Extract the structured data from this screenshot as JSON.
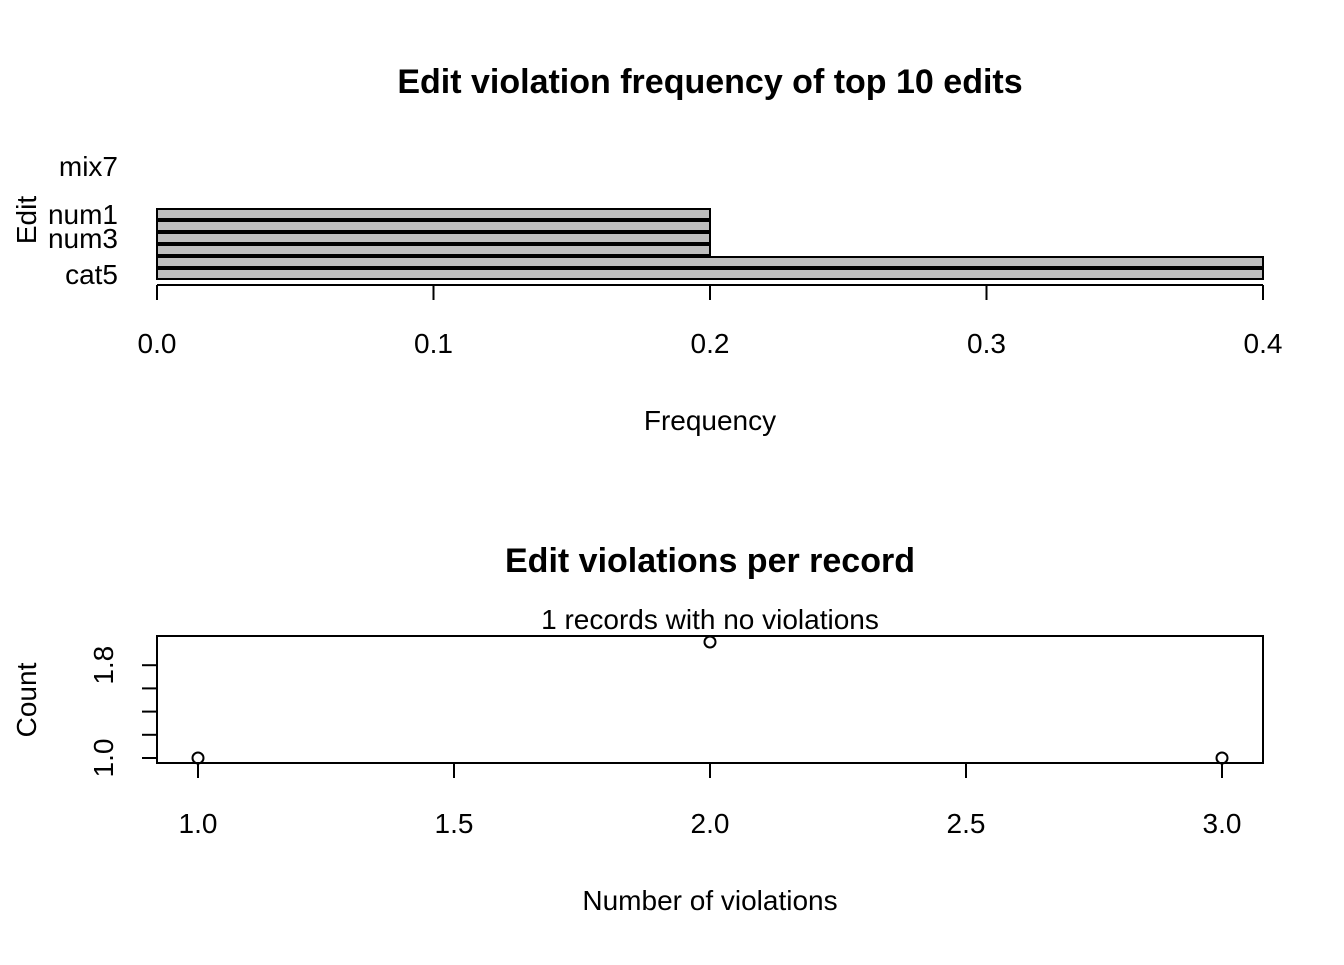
{
  "chart_data": [
    {
      "type": "bar",
      "orientation": "horizontal",
      "title": "Edit violation frequency of top 10 edits",
      "xlabel": "Frequency",
      "ylabel": "Edit",
      "xlim": [
        0,
        0.4
      ],
      "x_ticks": [
        "0.0",
        "0.1",
        "0.2",
        "0.3",
        "0.4"
      ],
      "y_tick_labels": [
        "cat5",
        "num3",
        "num1",
        "mix7"
      ],
      "categories": [
        "cat5",
        "",
        "",
        "num3",
        "",
        "num1",
        "",
        "",
        "",
        "mix7"
      ],
      "values": [
        0.4,
        0.4,
        0.2,
        0.2,
        0.2,
        0.2,
        0,
        0,
        0,
        0
      ],
      "bar_color": "#bebebe",
      "grid": false
    },
    {
      "type": "scatter",
      "title": "Edit violations per record",
      "subtitle": "1 records with no violations",
      "xlabel": "Number of violations",
      "ylabel": "Count",
      "x": [
        1,
        2,
        3
      ],
      "y": [
        1,
        2,
        1
      ],
      "x_ticks": [
        "1.0",
        "1.5",
        "2.0",
        "2.5",
        "3.0"
      ],
      "y_ticks": [
        "1.0",
        "1.8"
      ],
      "grid": false
    }
  ]
}
